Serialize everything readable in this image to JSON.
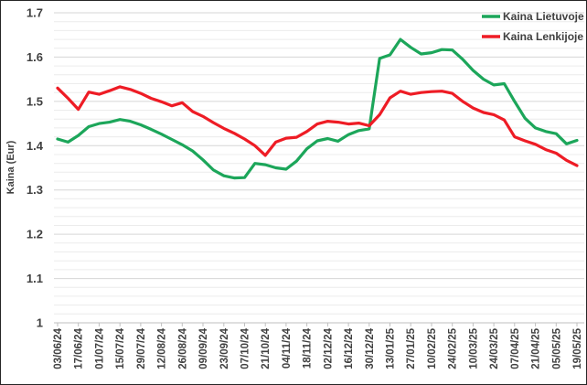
{
  "figure": {
    "background": "#ffffff",
    "border_color": "#262626",
    "text_color": "#404040",
    "major_grid_color": "#d6d6d6",
    "minor_grid_color": "#ececec",
    "axis_color": "#bfbfbf"
  },
  "chart_data": {
    "type": "line",
    "title": "",
    "xlabel": "",
    "ylabel": "Kaina (Eur)",
    "ylim": [
      1.0,
      1.7
    ],
    "y_major_step": 0.1,
    "y_minor_step": 0.02,
    "y_tick_labels": [
      "1.7",
      "1.6",
      "1.5",
      "1.4",
      "1.3",
      "1.2",
      "1.1",
      "1"
    ],
    "grid": "horizontal major + minor, no vertical grid",
    "legend_position": "top-right inside plot",
    "x_label_shown_every": 2,
    "x": [
      "03/06/24",
      "10/06/24",
      "17/06/24",
      "24/06/24",
      "01/07/24",
      "08/07/24",
      "15/07/24",
      "22/07/24",
      "29/07/24",
      "05/08/24",
      "12/08/24",
      "19/08/24",
      "26/08/24",
      "02/09/24",
      "09/09/24",
      "16/09/24",
      "23/09/24",
      "30/09/24",
      "07/10/24",
      "14/10/24",
      "21/10/24",
      "28/10/24",
      "04/11/24",
      "11/11/24",
      "18/11/24",
      "25/11/24",
      "02/12/24",
      "09/12/24",
      "16/12/24",
      "23/12/24",
      "30/12/24",
      "06/01/25",
      "13/01/25",
      "20/01/25",
      "27/01/25",
      "03/02/25",
      "10/02/25",
      "17/02/25",
      "24/02/25",
      "03/03/25",
      "10/03/25",
      "17/03/25",
      "24/03/25",
      "31/03/25",
      "07/04/25",
      "14/04/25",
      "21/04/25",
      "28/04/25",
      "05/05/25",
      "12/05/25",
      "19/05/25"
    ],
    "x_tick_labels": [
      "03/06/24",
      "17/06/24",
      "01/07/24",
      "15/07/24",
      "29/07/24",
      "12/08/24",
      "26/08/24",
      "09/09/24",
      "23/09/24",
      "07/10/24",
      "21/10/24",
      "04/11/24",
      "18/11/24",
      "02/12/24",
      "16/12/24",
      "30/12/24",
      "13/01/25",
      "27/01/25",
      "10/02/25",
      "24/02/25",
      "10/03/25",
      "24/03/25",
      "07/04/25",
      "21/04/25",
      "05/05/25",
      "19/05/25"
    ],
    "series": [
      {
        "name": "Kaina Lietuvoje",
        "color": "#1ca65a",
        "values": [
          1.415,
          1.408,
          1.423,
          1.443,
          1.45,
          1.453,
          1.459,
          1.455,
          1.447,
          1.437,
          1.426,
          1.414,
          1.402,
          1.388,
          1.368,
          1.345,
          1.332,
          1.327,
          1.328,
          1.36,
          1.357,
          1.35,
          1.347,
          1.365,
          1.393,
          1.411,
          1.416,
          1.41,
          1.425,
          1.434,
          1.438,
          1.597,
          1.605,
          1.64,
          1.622,
          1.607,
          1.61,
          1.617,
          1.616,
          1.595,
          1.57,
          1.55,
          1.537,
          1.54,
          1.5,
          1.462,
          1.44,
          1.432,
          1.427,
          1.404,
          1.412
        ]
      },
      {
        "name": "Kaina Lenkijoje",
        "color": "#ee1c25",
        "values": [
          1.53,
          1.507,
          1.482,
          1.521,
          1.516,
          1.524,
          1.533,
          1.527,
          1.518,
          1.507,
          1.499,
          1.49,
          1.497,
          1.477,
          1.466,
          1.452,
          1.439,
          1.428,
          1.415,
          1.4,
          1.378,
          1.408,
          1.417,
          1.419,
          1.432,
          1.449,
          1.455,
          1.453,
          1.449,
          1.451,
          1.445,
          1.47,
          1.508,
          1.523,
          1.516,
          1.52,
          1.522,
          1.523,
          1.518,
          1.5,
          1.485,
          1.475,
          1.47,
          1.458,
          1.42,
          1.411,
          1.403,
          1.391,
          1.383,
          1.367,
          1.355
        ]
      }
    ]
  }
}
